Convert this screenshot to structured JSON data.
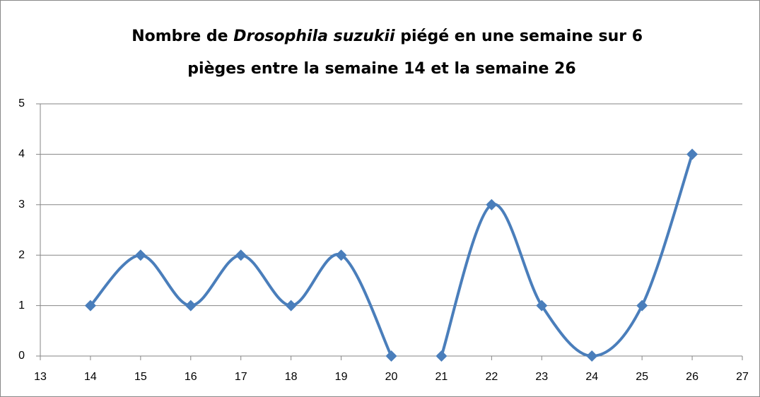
{
  "chart_data": {
    "type": "line",
    "title": [
      [
        "Nombre de ",
        "Drosophila suzukii",
        " piégé en une semaine sur 6"
      ],
      [
        "pièges entre la semaine 14 et la semaine 26"
      ]
    ],
    "series": [
      {
        "color": "#4a7ebb",
        "x": [
          14,
          15,
          16,
          17,
          18,
          19,
          20
        ],
        "values": [
          1,
          2,
          1,
          2,
          1,
          2,
          0
        ]
      },
      {
        "color": "#4a7ebb",
        "x": [
          21,
          22,
          23,
          24,
          25,
          26
        ],
        "values": [
          0,
          3,
          1,
          0,
          1,
          4
        ]
      }
    ],
    "smooth": true,
    "marker": "diamond",
    "xlim": [
      13,
      27
    ],
    "xticks": [
      13,
      14,
      15,
      16,
      17,
      18,
      19,
      20,
      21,
      22,
      23,
      24,
      25,
      26,
      27
    ],
    "ylim": [
      0,
      5
    ],
    "yticks": [
      0,
      1,
      2,
      3,
      4,
      5
    ],
    "grid": true
  }
}
